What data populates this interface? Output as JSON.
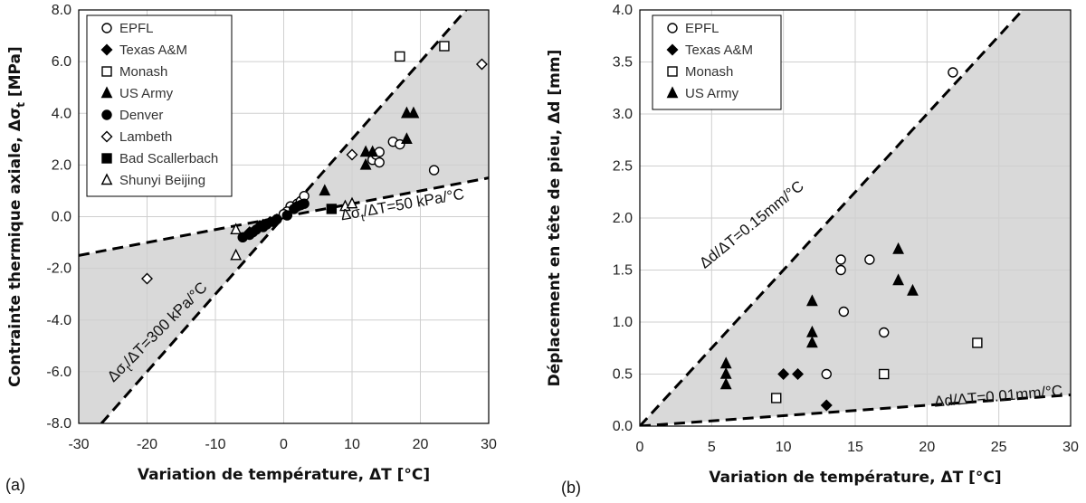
{
  "chart_data": [
    {
      "type": "scatter",
      "panel_label": "(a)",
      "xlabel": "Variation de température, ΔT [°C]",
      "ylabel": "Contrainte thermique axiale, Δσ",
      "ylabel_sub": "t",
      "ylabel_unit": " [MPa]",
      "xlim": [
        -30,
        30
      ],
      "ylim": [
        -8,
        8
      ],
      "xticks": [
        -30,
        -20,
        -10,
        0,
        10,
        20,
        30
      ],
      "xtick_labels": [
        "-30",
        "-20",
        "-10",
        "0",
        "10",
        "20",
        "30"
      ],
      "yticks": [
        -8,
        -6,
        -4,
        -2,
        0,
        2,
        4,
        6,
        8
      ],
      "ytick_labels": [
        "-8.0",
        "-6.0",
        "-4.0",
        "-2.0",
        "0.0",
        "2.0",
        "4.0",
        "6.0",
        "8.0"
      ],
      "grid": true,
      "legend_position": "top-left",
      "shaded_region": "between the two bounding lines",
      "lines": [
        {
          "name": "upper",
          "slope": 0.3,
          "label": "Δσt/ΔT=300 kPa/°C",
          "label_main": "Δσ",
          "label_sub": "t",
          "label_rest": "/ΔT=300 kPa/°C"
        },
        {
          "name": "lower",
          "slope": 0.05,
          "label": "Δσt/ΔT=50 kPa/°C",
          "label_main": "Δσ",
          "label_sub": "t",
          "label_rest": "/ΔT=50 kPa/°C"
        }
      ],
      "series": [
        {
          "name": "EPFL",
          "marker": "circle-open",
          "points": [
            [
              1,
              0.4
            ],
            [
              2,
              0.5
            ],
            [
              2.5,
              0.6
            ],
            [
              3,
              0.8
            ],
            [
              13,
              2.2
            ],
            [
              13.5,
              2.4
            ],
            [
              14,
              2.5
            ],
            [
              14,
              2.1
            ],
            [
              16,
              2.9
            ],
            [
              17,
              2.8
            ],
            [
              22,
              1.8
            ],
            [
              0.5,
              0.2
            ],
            [
              0,
              0.1
            ]
          ]
        },
        {
          "name": "Texas A&M",
          "marker": "diamond-filled",
          "points": [
            [
              -2,
              -0.2
            ],
            [
              -3,
              -0.3
            ],
            [
              -4,
              -0.5
            ],
            [
              -5,
              -0.6
            ],
            [
              -3.5,
              -0.35
            ],
            [
              -1,
              -0.1
            ]
          ]
        },
        {
          "name": "Monash",
          "marker": "square-open",
          "points": [
            [
              17,
              6.2
            ],
            [
              23.5,
              6.6
            ]
          ]
        },
        {
          "name": "US Army",
          "marker": "triangle-filled",
          "points": [
            [
              6,
              1.0
            ],
            [
              12,
              2.5
            ],
            [
              12,
              2.0
            ],
            [
              13,
              2.5
            ],
            [
              18,
              3.0
            ],
            [
              18,
              4.0
            ],
            [
              19,
              4.0
            ]
          ]
        },
        {
          "name": "Denver",
          "marker": "circle-filled",
          "points": [
            [
              -6,
              -0.8
            ],
            [
              -5,
              -0.7
            ],
            [
              -4.5,
              -0.6
            ],
            [
              -4,
              -0.5
            ],
            [
              -3,
              -0.4
            ],
            [
              -2.5,
              -0.3
            ],
            [
              -1.5,
              -0.2
            ],
            [
              -1,
              -0.1
            ],
            [
              0.5,
              0.05
            ],
            [
              1.5,
              0.3
            ],
            [
              2,
              0.4
            ],
            [
              2.5,
              0.45
            ],
            [
              3,
              0.5
            ]
          ]
        },
        {
          "name": "Lambeth",
          "marker": "diamond-open",
          "points": [
            [
              -20,
              -2.4
            ],
            [
              10,
              2.4
            ],
            [
              29,
              5.9
            ]
          ]
        },
        {
          "name": "Bad Scallerbach",
          "marker": "square-filled",
          "points": [
            [
              7,
              0.3
            ]
          ]
        },
        {
          "name": "Shunyi Beijing",
          "marker": "triangle-open",
          "points": [
            [
              -7,
              -0.5
            ],
            [
              -7,
              -1.5
            ],
            [
              9,
              0.4
            ],
            [
              10,
              0.5
            ]
          ]
        }
      ]
    },
    {
      "type": "scatter",
      "panel_label": "(b)",
      "xlabel": "Variation de température, ΔT [°C]",
      "ylabel": "Déplacement en tête de pieu, Δd [mm]",
      "xlim": [
        0,
        30
      ],
      "ylim": [
        0,
        4
      ],
      "xticks": [
        0,
        5,
        10,
        15,
        20,
        25,
        30
      ],
      "xtick_labels": [
        "0",
        "5",
        "10",
        "15",
        "20",
        "25",
        "30"
      ],
      "yticks": [
        0,
        0.5,
        1,
        1.5,
        2,
        2.5,
        3,
        3.5,
        4
      ],
      "ytick_labels": [
        "0.0",
        "0.5",
        "1.0",
        "1.5",
        "2.0",
        "2.5",
        "3.0",
        "3.5",
        "4.0"
      ],
      "grid": true,
      "legend_position": "top-left",
      "shaded_region": "between the two bounding lines",
      "lines": [
        {
          "name": "upper",
          "slope": 0.15,
          "label": "Δd/ΔT=0.15mm/°C"
        },
        {
          "name": "lower",
          "slope": 0.01,
          "label": "Δd/ΔT=0.01mm/°C"
        }
      ],
      "series": [
        {
          "name": "EPFL",
          "marker": "circle-open",
          "points": [
            [
              14,
              1.6
            ],
            [
              14,
              1.5
            ],
            [
              14.2,
              1.1
            ],
            [
              16,
              1.6
            ],
            [
              17,
              0.9
            ],
            [
              13,
              0.5
            ],
            [
              21.8,
              3.4
            ]
          ]
        },
        {
          "name": "Texas A&M",
          "marker": "diamond-filled",
          "points": [
            [
              10,
              0.5
            ],
            [
              11,
              0.5
            ],
            [
              13,
              0.2
            ]
          ]
        },
        {
          "name": "Monash",
          "marker": "square-open",
          "points": [
            [
              9.5,
              0.27
            ],
            [
              17,
              0.5
            ],
            [
              23.5,
              0.8
            ]
          ]
        },
        {
          "name": "US Army",
          "marker": "triangle-filled",
          "points": [
            [
              6,
              0.6
            ],
            [
              6,
              0.5
            ],
            [
              6,
              0.4
            ],
            [
              12,
              1.2
            ],
            [
              12,
              0.9
            ],
            [
              12,
              0.8
            ],
            [
              18,
              1.7
            ],
            [
              18,
              1.4
            ],
            [
              19,
              1.3
            ]
          ]
        }
      ]
    }
  ]
}
